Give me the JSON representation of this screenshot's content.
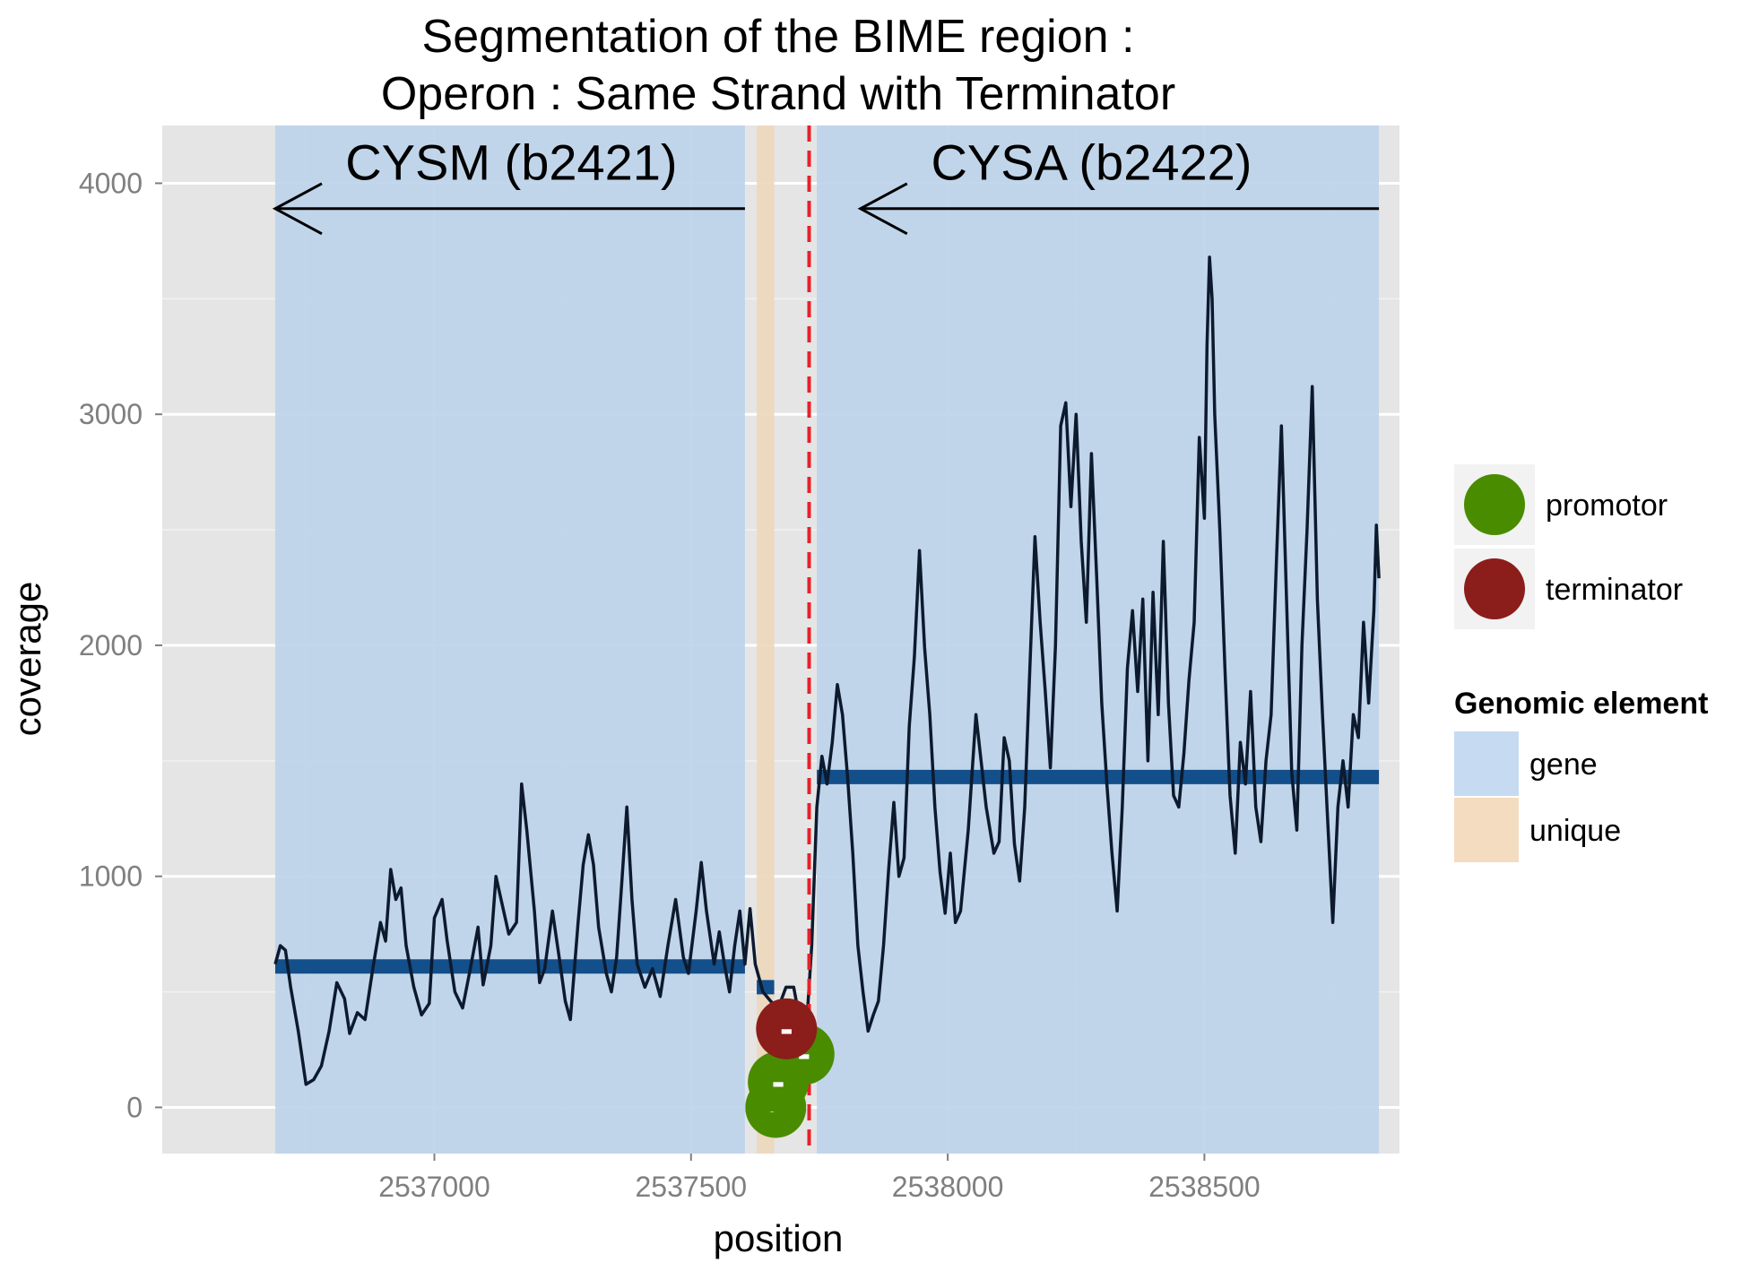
{
  "chart_data": {
    "type": "line",
    "title": [
      "Segmentation of the BIME region :",
      "Operon : Same Strand with Terminator"
    ],
    "xlabel": "position",
    "ylabel": "coverage",
    "xlim": [
      2536470,
      2538880
    ],
    "ylim": [
      -200,
      4250
    ],
    "x_ticks": [
      2537000,
      2537500,
      2538000,
      2538500
    ],
    "x_tick_labels": [
      "2537000",
      "2537500",
      "2538000",
      "2538500"
    ],
    "y_ticks": [
      0,
      1000,
      2000,
      3000,
      4000
    ],
    "y_tick_labels": [
      "0",
      "1000",
      "2000",
      "3000",
      "4000"
    ],
    "grid": true,
    "regions": [
      {
        "type": "gene",
        "x0": 2536690,
        "x1": 2537605,
        "color": "#bcd3ea"
      },
      {
        "type": "unique",
        "x0": 2537628,
        "x1": 2537662,
        "color": "#ecd7bb"
      },
      {
        "type": "gene",
        "x0": 2537745,
        "x1": 2538840,
        "color": "#bcd3ea"
      }
    ],
    "gene_annotations": [
      {
        "label": "CYSM (b2421)",
        "arrow_from": 2537605,
        "arrow_to": 2536690,
        "y": 3890,
        "label_x": 2537150,
        "label_y": 4100
      },
      {
        "label": "CYSA (b2422)",
        "arrow_from": 2538840,
        "arrow_to": 2537830,
        "y": 3890,
        "label_x": 2538280,
        "label_y": 4100
      }
    ],
    "segments": [
      {
        "x0": 2536690,
        "x1": 2537605,
        "y": 610
      },
      {
        "x0": 2537628,
        "x1": 2537662,
        "y": 520
      },
      {
        "x0": 2537745,
        "x1": 2538840,
        "y": 1430
      }
    ],
    "vline": {
      "x": 2537730,
      "style": "dashed",
      "color": "#e8202a"
    },
    "promotors": [
      {
        "x": 2537665,
        "y": 0,
        "label": "-"
      },
      {
        "x": 2537670,
        "y": 110,
        "label": "-"
      },
      {
        "x": 2537720,
        "y": 230,
        "label": "-"
      }
    ],
    "terminators": [
      {
        "x": 2537686,
        "y": 340,
        "label": "-"
      }
    ],
    "coverage": [
      [
        2536690,
        620
      ],
      [
        2536700,
        700
      ],
      [
        2536710,
        680
      ],
      [
        2536720,
        520
      ],
      [
        2536735,
        330
      ],
      [
        2536750,
        100
      ],
      [
        2536765,
        120
      ],
      [
        2536780,
        180
      ],
      [
        2536795,
        330
      ],
      [
        2536810,
        540
      ],
      [
        2536825,
        470
      ],
      [
        2536835,
        320
      ],
      [
        2536850,
        410
      ],
      [
        2536865,
        380
      ],
      [
        2536880,
        600
      ],
      [
        2536895,
        800
      ],
      [
        2536905,
        720
      ],
      [
        2536915,
        1030
      ],
      [
        2536925,
        900
      ],
      [
        2536935,
        950
      ],
      [
        2536945,
        700
      ],
      [
        2536960,
        520
      ],
      [
        2536975,
        400
      ],
      [
        2536990,
        450
      ],
      [
        2537000,
        820
      ],
      [
        2537015,
        900
      ],
      [
        2537025,
        720
      ],
      [
        2537040,
        500
      ],
      [
        2537055,
        430
      ],
      [
        2537070,
        600
      ],
      [
        2537085,
        780
      ],
      [
        2537095,
        530
      ],
      [
        2537110,
        700
      ],
      [
        2537120,
        1000
      ],
      [
        2537130,
        900
      ],
      [
        2537145,
        750
      ],
      [
        2537160,
        800
      ],
      [
        2537170,
        1400
      ],
      [
        2537180,
        1200
      ],
      [
        2537195,
        850
      ],
      [
        2537205,
        540
      ],
      [
        2537215,
        600
      ],
      [
        2537230,
        850
      ],
      [
        2537245,
        620
      ],
      [
        2537255,
        460
      ],
      [
        2537265,
        380
      ],
      [
        2537280,
        800
      ],
      [
        2537290,
        1050
      ],
      [
        2537300,
        1180
      ],
      [
        2537310,
        1050
      ],
      [
        2537320,
        780
      ],
      [
        2537335,
        580
      ],
      [
        2537345,
        500
      ],
      [
        2537355,
        650
      ],
      [
        2537365,
        970
      ],
      [
        2537375,
        1300
      ],
      [
        2537385,
        900
      ],
      [
        2537395,
        620
      ],
      [
        2537410,
        520
      ],
      [
        2537425,
        600
      ],
      [
        2537440,
        480
      ],
      [
        2537455,
        700
      ],
      [
        2537470,
        900
      ],
      [
        2537485,
        650
      ],
      [
        2537495,
        580
      ],
      [
        2537510,
        850
      ],
      [
        2537520,
        1060
      ],
      [
        2537530,
        850
      ],
      [
        2537545,
        620
      ],
      [
        2537555,
        760
      ],
      [
        2537565,
        620
      ],
      [
        2537575,
        500
      ],
      [
        2537585,
        700
      ],
      [
        2537595,
        850
      ],
      [
        2537605,
        620
      ],
      [
        2537615,
        860
      ],
      [
        2537625,
        620
      ],
      [
        2537640,
        500
      ],
      [
        2537655,
        460
      ],
      [
        2537670,
        430
      ],
      [
        2537685,
        520
      ],
      [
        2537700,
        520
      ],
      [
        2537715,
        340
      ],
      [
        2537725,
        350
      ],
      [
        2537735,
        700
      ],
      [
        2537745,
        1300
      ],
      [
        2537755,
        1520
      ],
      [
        2537765,
        1400
      ],
      [
        2537775,
        1580
      ],
      [
        2537785,
        1830
      ],
      [
        2537795,
        1700
      ],
      [
        2537805,
        1430
      ],
      [
        2537815,
        1100
      ],
      [
        2537825,
        700
      ],
      [
        2537835,
        500
      ],
      [
        2537845,
        330
      ],
      [
        2537855,
        400
      ],
      [
        2537865,
        460
      ],
      [
        2537875,
        700
      ],
      [
        2537885,
        1030
      ],
      [
        2537895,
        1320
      ],
      [
        2537905,
        1000
      ],
      [
        2537915,
        1080
      ],
      [
        2537925,
        1650
      ],
      [
        2537935,
        1950
      ],
      [
        2537945,
        2410
      ],
      [
        2537955,
        1990
      ],
      [
        2537965,
        1700
      ],
      [
        2537975,
        1300
      ],
      [
        2537985,
        1020
      ],
      [
        2537995,
        840
      ],
      [
        2538005,
        1100
      ],
      [
        2538015,
        800
      ],
      [
        2538025,
        850
      ],
      [
        2538040,
        1200
      ],
      [
        2538055,
        1700
      ],
      [
        2538065,
        1500
      ],
      [
        2538075,
        1300
      ],
      [
        2538090,
        1100
      ],
      [
        2538100,
        1150
      ],
      [
        2538110,
        1600
      ],
      [
        2538120,
        1500
      ],
      [
        2538130,
        1140
      ],
      [
        2538140,
        980
      ],
      [
        2538150,
        1300
      ],
      [
        2538160,
        1900
      ],
      [
        2538170,
        2470
      ],
      [
        2538180,
        2100
      ],
      [
        2538190,
        1800
      ],
      [
        2538200,
        1470
      ],
      [
        2538210,
        2000
      ],
      [
        2538220,
        2950
      ],
      [
        2538230,
        3050
      ],
      [
        2538240,
        2600
      ],
      [
        2538250,
        3000
      ],
      [
        2538260,
        2450
      ],
      [
        2538270,
        2100
      ],
      [
        2538280,
        2830
      ],
      [
        2538290,
        2300
      ],
      [
        2538300,
        1750
      ],
      [
        2538310,
        1400
      ],
      [
        2538320,
        1100
      ],
      [
        2538330,
        850
      ],
      [
        2538340,
        1300
      ],
      [
        2538350,
        1900
      ],
      [
        2538360,
        2150
      ],
      [
        2538370,
        1800
      ],
      [
        2538380,
        2200
      ],
      [
        2538390,
        1500
      ],
      [
        2538400,
        2230
      ],
      [
        2538410,
        1700
      ],
      [
        2538420,
        2450
      ],
      [
        2538430,
        1750
      ],
      [
        2538440,
        1350
      ],
      [
        2538450,
        1300
      ],
      [
        2538460,
        1530
      ],
      [
        2538470,
        1850
      ],
      [
        2538480,
        2100
      ],
      [
        2538490,
        2900
      ],
      [
        2538500,
        2550
      ],
      [
        2538505,
        3300
      ],
      [
        2538510,
        3680
      ],
      [
        2538515,
        3500
      ],
      [
        2538520,
        3000
      ],
      [
        2538530,
        2500
      ],
      [
        2538540,
        1900
      ],
      [
        2538550,
        1350
      ],
      [
        2538560,
        1100
      ],
      [
        2538570,
        1580
      ],
      [
        2538580,
        1400
      ],
      [
        2538590,
        1800
      ],
      [
        2538600,
        1300
      ],
      [
        2538610,
        1150
      ],
      [
        2538620,
        1500
      ],
      [
        2538630,
        1700
      ],
      [
        2538640,
        2350
      ],
      [
        2538650,
        2950
      ],
      [
        2538660,
        2200
      ],
      [
        2538670,
        1450
      ],
      [
        2538680,
        1200
      ],
      [
        2538690,
        2000
      ],
      [
        2538700,
        2500
      ],
      [
        2538710,
        3120
      ],
      [
        2538720,
        2200
      ],
      [
        2538730,
        1700
      ],
      [
        2538740,
        1250
      ],
      [
        2538750,
        800
      ],
      [
        2538760,
        1300
      ],
      [
        2538770,
        1500
      ],
      [
        2538780,
        1300
      ],
      [
        2538790,
        1700
      ],
      [
        2538800,
        1600
      ],
      [
        2538810,
        2100
      ],
      [
        2538820,
        1750
      ],
      [
        2538830,
        2150
      ],
      [
        2538835,
        2520
      ],
      [
        2538840,
        2290
      ]
    ],
    "legend": {
      "placement": "right",
      "marker_items": [
        {
          "label": "promotor",
          "color": "#4a8c00"
        },
        {
          "label": "terminator",
          "color": "#8b1d1b"
        }
      ],
      "fill_title": "Genomic element",
      "fill_items": [
        {
          "label": "gene",
          "color": "#c6dbf2"
        },
        {
          "label": "unique",
          "color": "#f4dcc0"
        }
      ]
    },
    "colors": {
      "panel": "#e5e5e5",
      "grid_major": "#ffffff",
      "grid_minor": "#f2f2f2",
      "coverage_line": "#0d1a2e",
      "segment": "#134f8a"
    }
  }
}
